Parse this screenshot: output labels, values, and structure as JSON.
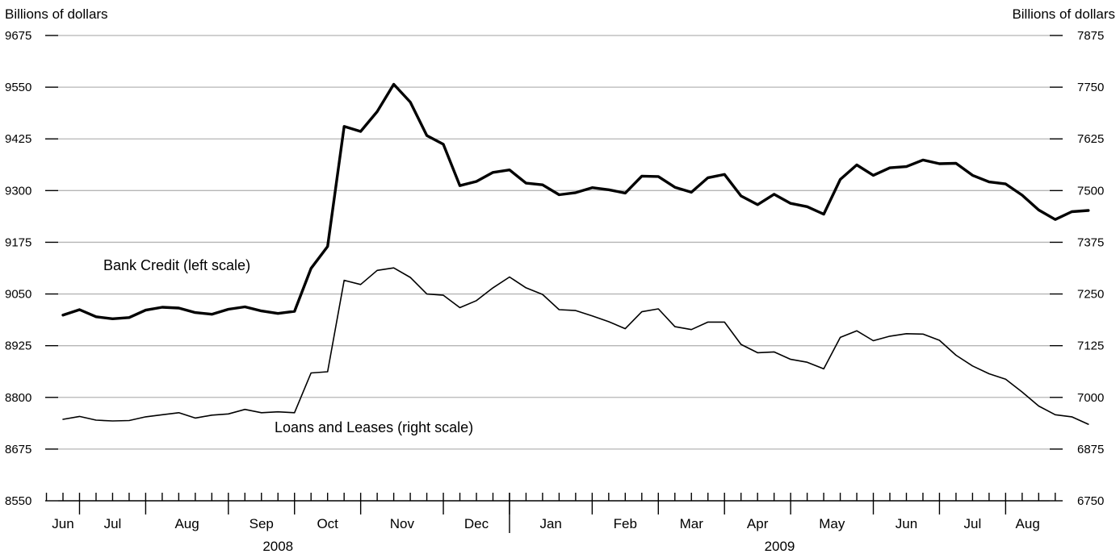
{
  "chart_data": {
    "type": "line",
    "left_axis": {
      "title": "Billions of dollars",
      "range": [
        8550,
        9675
      ],
      "ticks": [
        9675,
        9550,
        9425,
        9300,
        9175,
        9050,
        8925,
        8800,
        8675,
        8550
      ]
    },
    "right_axis": {
      "title": "Billions of dollars",
      "range": [
        6750,
        7875
      ],
      "ticks": [
        7875,
        7750,
        7625,
        7500,
        7375,
        7250,
        7125,
        7000,
        6875,
        6750
      ]
    },
    "grid": true,
    "x": {
      "unit": "week",
      "start": "2008-05-28",
      "months": [
        "Jun",
        "Jul",
        "Aug",
        "Sep",
        "Oct",
        "Nov",
        "Dec",
        "Jan",
        "Feb",
        "Mar",
        "Apr",
        "May",
        "Jun",
        "Jul",
        "Aug"
      ],
      "years": [
        "2008",
        "2009"
      ]
    },
    "series": [
      {
        "name": "Bank Credit (left scale)",
        "axis": "left",
        "values": [
          8999,
          9012,
          8995,
          8990,
          8993,
          9011,
          9018,
          9016,
          9005,
          9001,
          9013,
          9019,
          9009,
          9003,
          9008,
          9112,
          9165,
          9455,
          9443,
          9491,
          9557,
          9514,
          9433,
          9412,
          9312,
          9322,
          9344,
          9350,
          9318,
          9314,
          9290,
          9295,
          9307,
          9302,
          9294,
          9335,
          9334,
          9308,
          9296,
          9331,
          9339,
          9287,
          9266,
          9291,
          9269,
          9261,
          9243,
          9327,
          9362,
          9337,
          9355,
          9358,
          9374,
          9365,
          9366,
          9337,
          9321,
          9316,
          9289,
          9253,
          9230,
          9249,
          9252
        ]
      },
      {
        "name": "Loans and Leases (right scale)",
        "axis": "right",
        "values": [
          6947,
          6954,
          6945,
          6943,
          6944,
          6953,
          6958,
          6963,
          6950,
          6957,
          6960,
          6971,
          6963,
          6965,
          6963,
          7059,
          7062,
          7283,
          7273,
          7307,
          7313,
          7290,
          7250,
          7247,
          7217,
          7234,
          7265,
          7291,
          7265,
          7249,
          7212,
          7210,
          7197,
          7183,
          7166,
          7207,
          7214,
          7171,
          7164,
          7182,
          7182,
          7128,
          7108,
          7110,
          7092,
          7085,
          7069,
          7145,
          7161,
          7137,
          7148,
          7154,
          7153,
          7138,
          7102,
          7076,
          7057,
          7044,
          7013,
          6979,
          6958,
          6953,
          6935
        ]
      }
    ],
    "annotations": [
      {
        "text": "Bank Credit (left scale)",
        "series": 0
      },
      {
        "text": "Loans and Leases (right scale)",
        "series": 1
      }
    ]
  }
}
